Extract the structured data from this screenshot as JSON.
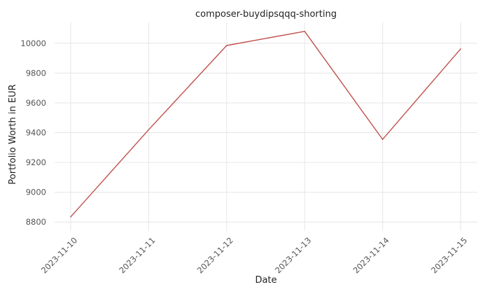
{
  "chart_data": {
    "type": "line",
    "title": "composer-buydipsqqq-shorting",
    "xlabel": "Date",
    "ylabel": "Portfolio Worth in EUR",
    "x": [
      "2023-11-10",
      "2023-11-11",
      "2023-11-12",
      "2023-11-13",
      "2023-11-14",
      "2023-11-15"
    ],
    "series": [
      {
        "values": [
          8835,
          9420,
          9985,
          10080,
          9355,
          9962
        ],
        "color": "#c0504d"
      }
    ],
    "yticks": [
      8800,
      9000,
      9200,
      9400,
      9600,
      9800,
      10000
    ],
    "ylim": [
      8740,
      10140
    ],
    "grid": true,
    "legend": "none"
  }
}
